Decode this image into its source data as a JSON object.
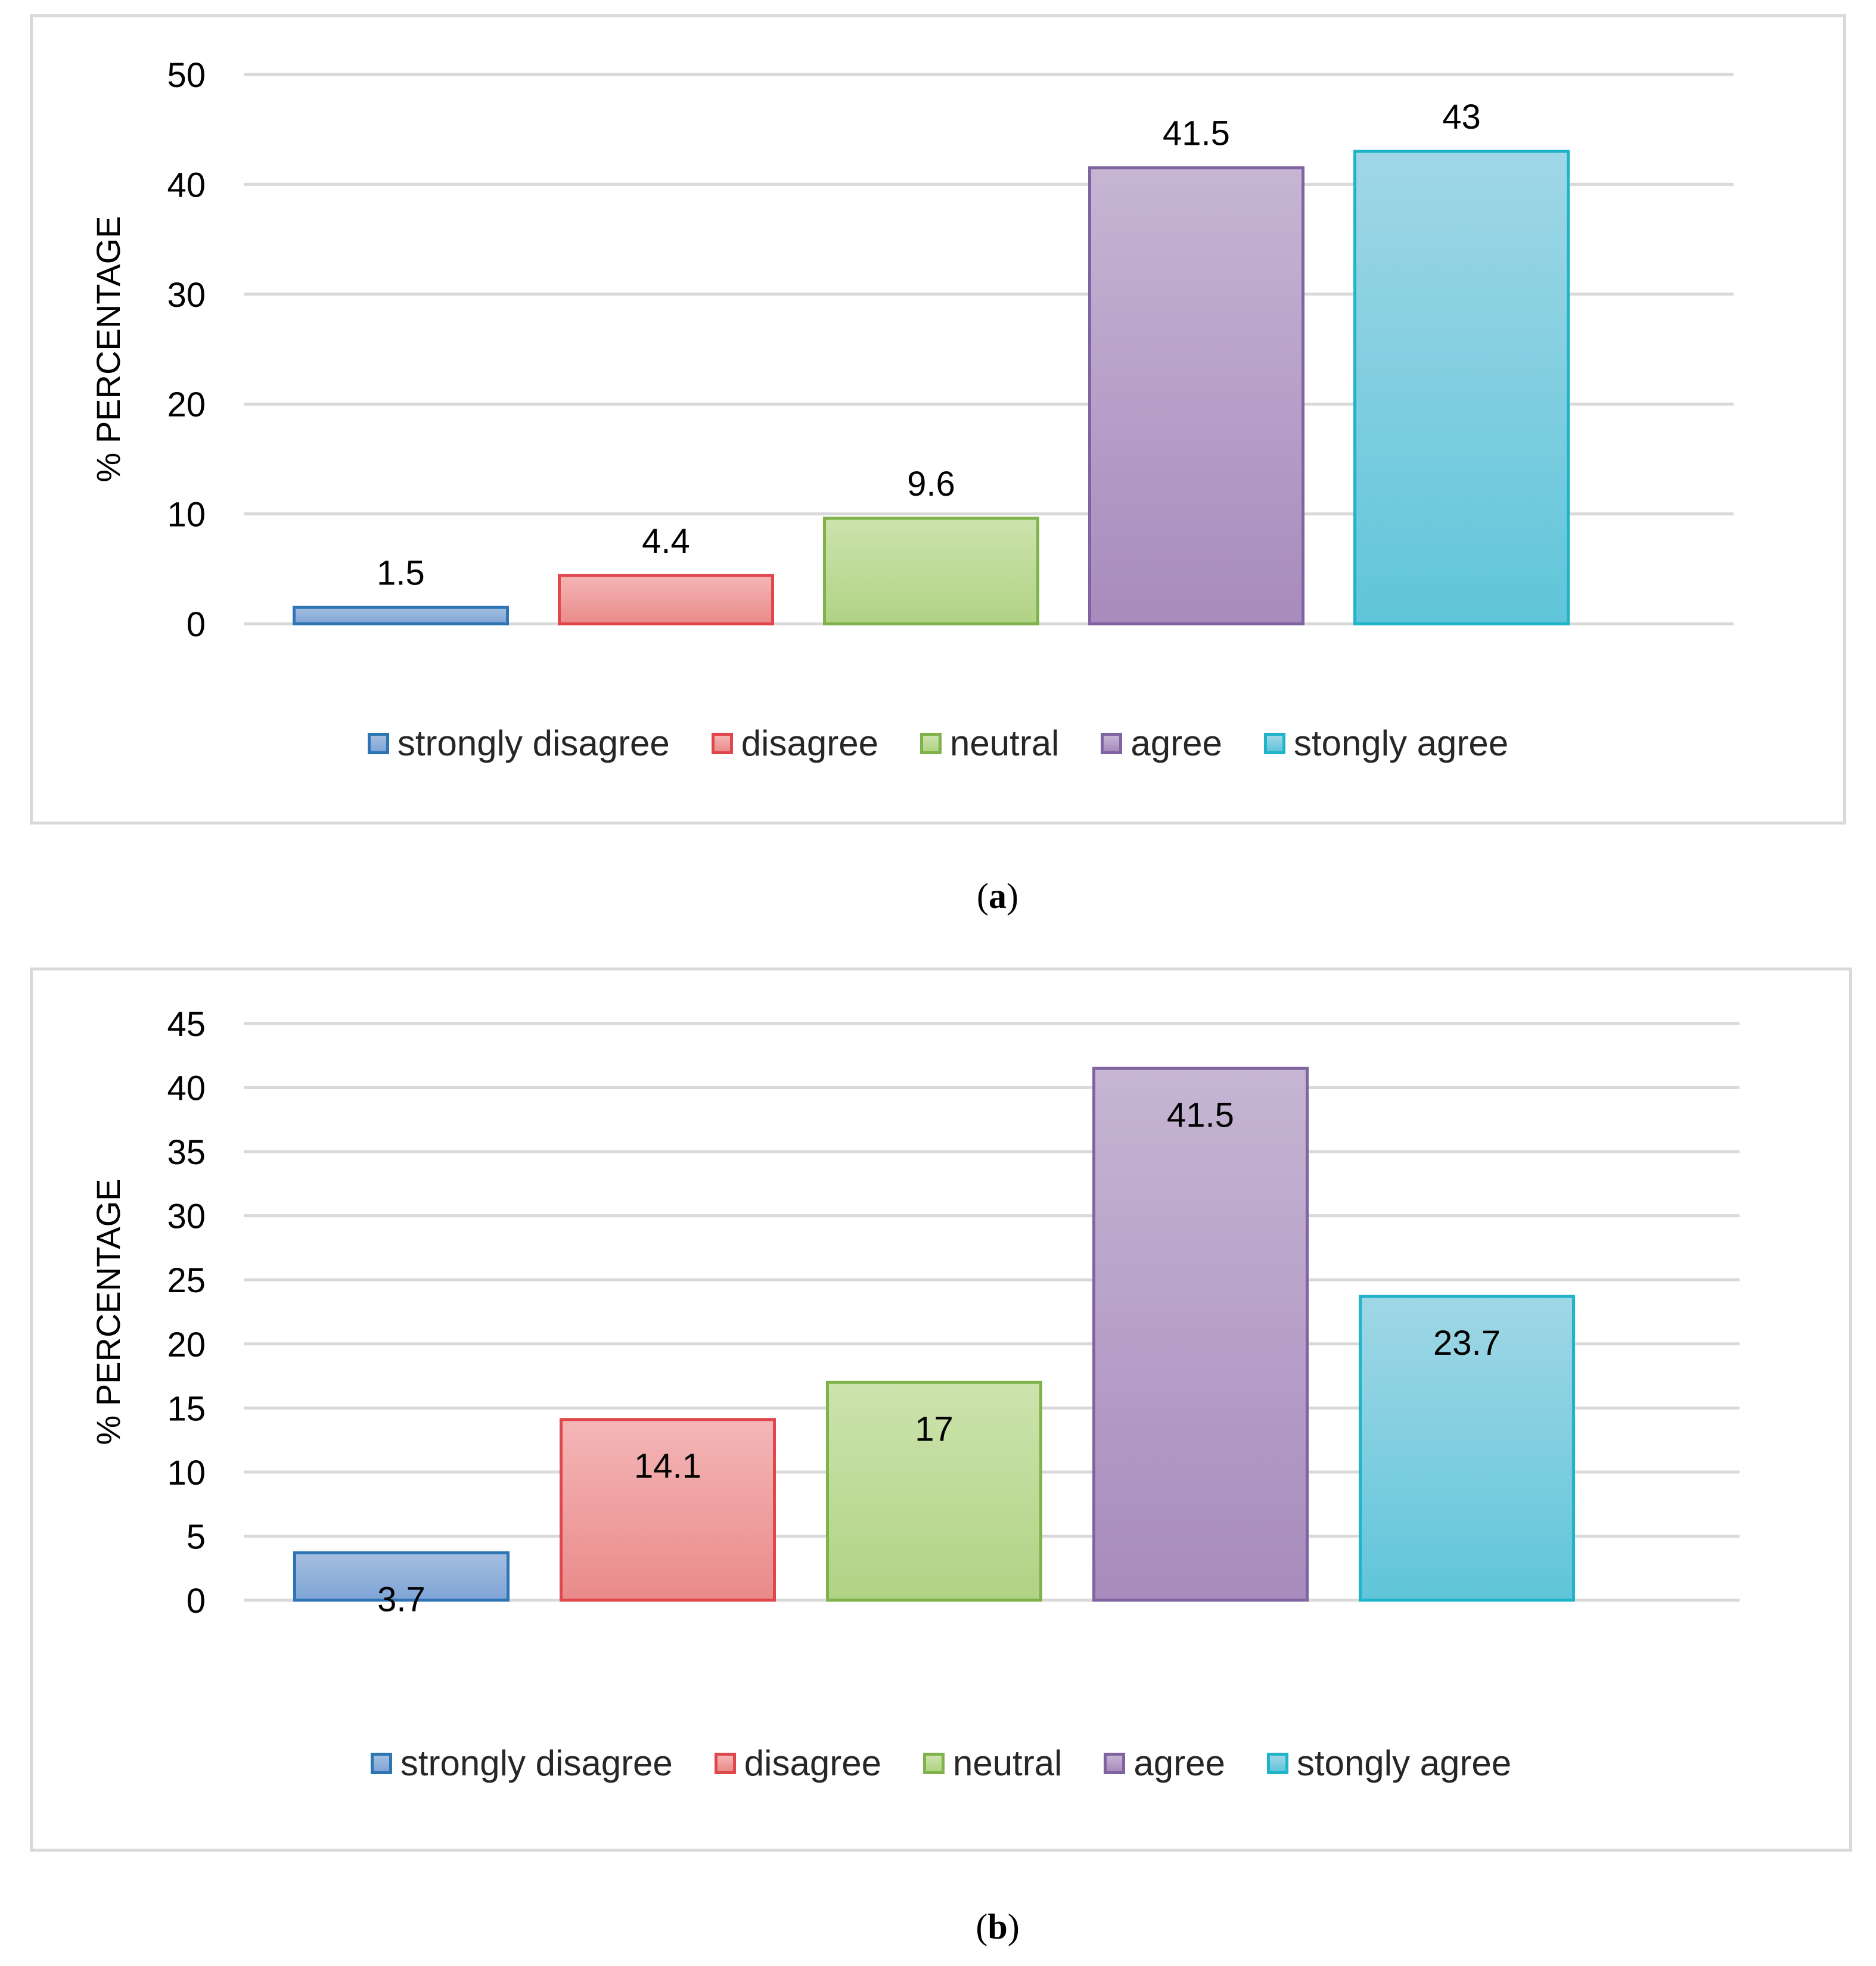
{
  "figure": {
    "caption_a": "a",
    "caption_b": "b"
  },
  "chart_data": [
    {
      "id": "a",
      "type": "bar",
      "title": "",
      "xlabel": "",
      "ylabel": "% PERCENTAGE",
      "ylim": [
        0,
        50
      ],
      "yticks": [
        0,
        10,
        20,
        30,
        40,
        50
      ],
      "grid": true,
      "legend_placement": "bottom",
      "label_position": "outside-end",
      "categories": [
        "strongly disagree",
        "disagree",
        "neutral",
        "agree",
        "stongly agree"
      ],
      "values": [
        1.5,
        4.4,
        9.6,
        41.5,
        43
      ],
      "value_labels": [
        "1.5",
        "4.4",
        "9.6",
        "41.5",
        "43"
      ],
      "colors": [
        {
          "top": "#a6bfe0",
          "bottom": "#7ea4d6",
          "border": "#2e75b6"
        },
        {
          "top": "#f4b6b6",
          "bottom": "#ea8a8a",
          "border": "#e0474c"
        },
        {
          "top": "#cde3ad",
          "bottom": "#b0d384",
          "border": "#7fb24a"
        },
        {
          "top": "#c6b5d3",
          "bottom": "#a78bbd",
          "border": "#8064a2"
        },
        {
          "top": "#a0d7e6",
          "bottom": "#60c5da",
          "border": "#1fb4c9"
        }
      ]
    },
    {
      "id": "b",
      "type": "bar",
      "title": "",
      "xlabel": "",
      "ylabel": "% PERCENTAGE",
      "ylim": [
        0,
        45
      ],
      "yticks": [
        0,
        5,
        10,
        15,
        20,
        25,
        30,
        35,
        40,
        45
      ],
      "grid": true,
      "legend_placement": "bottom",
      "label_position": "inside-end",
      "categories": [
        "strongly disagree",
        "disagree",
        "neutral",
        "agree",
        "stongly agree"
      ],
      "values": [
        3.7,
        14.1,
        17,
        41.5,
        23.7
      ],
      "value_labels": [
        "3.7",
        "14.1",
        "17",
        "41.5",
        "23.7"
      ],
      "colors": [
        {
          "top": "#a6bfe0",
          "bottom": "#7ea4d6",
          "border": "#2e75b6"
        },
        {
          "top": "#f4b6b6",
          "bottom": "#ea8a8a",
          "border": "#e0474c"
        },
        {
          "top": "#cde3ad",
          "bottom": "#b0d384",
          "border": "#7fb24a"
        },
        {
          "top": "#c6b5d3",
          "bottom": "#a78bbd",
          "border": "#8064a2"
        },
        {
          "top": "#a0d7e6",
          "bottom": "#60c5da",
          "border": "#1fb4c9"
        }
      ]
    }
  ]
}
